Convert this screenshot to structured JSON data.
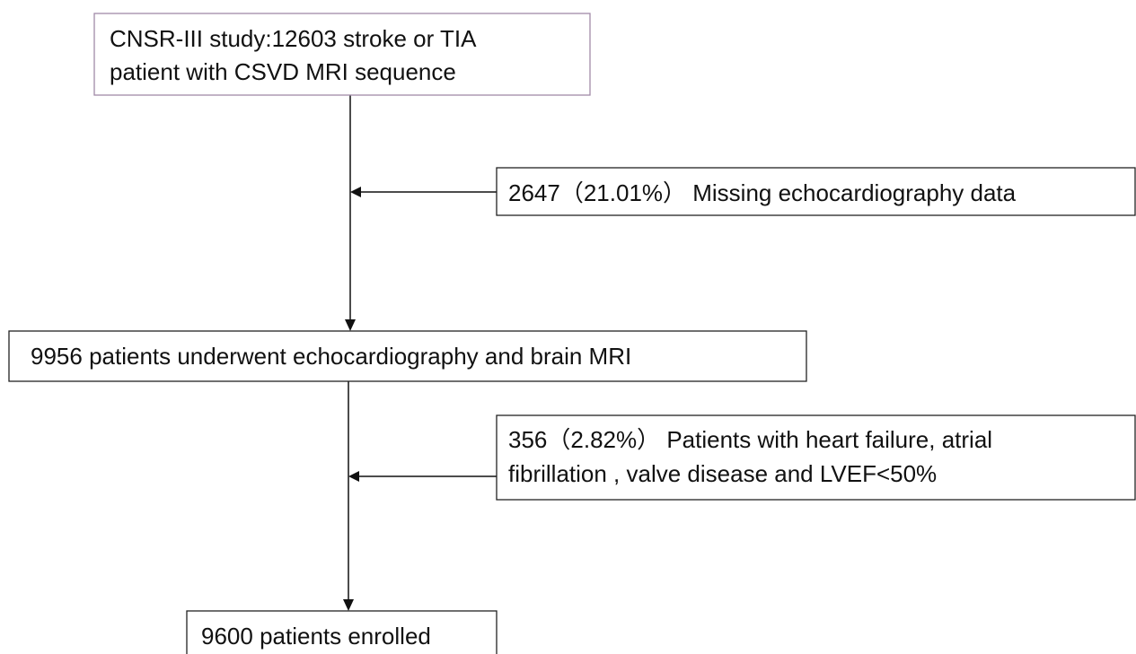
{
  "nodes": [
    {
      "lines": [
        "CNSR-III study:12603 stroke or TIA",
        "patient with CSVD MRI sequence"
      ]
    },
    {
      "lines": [
        "2647（21.01%） Missing echocardiography data"
      ]
    },
    {
      "lines": [
        "9956 patients underwent echocardiography and brain MRI"
      ]
    },
    {
      "lines": [
        "356（2.82%） Patients with heart failure, atrial",
        "fibrillation , valve disease and LVEF<50%"
      ]
    },
    {
      "lines": [
        "9600 patients enrolled"
      ]
    }
  ]
}
